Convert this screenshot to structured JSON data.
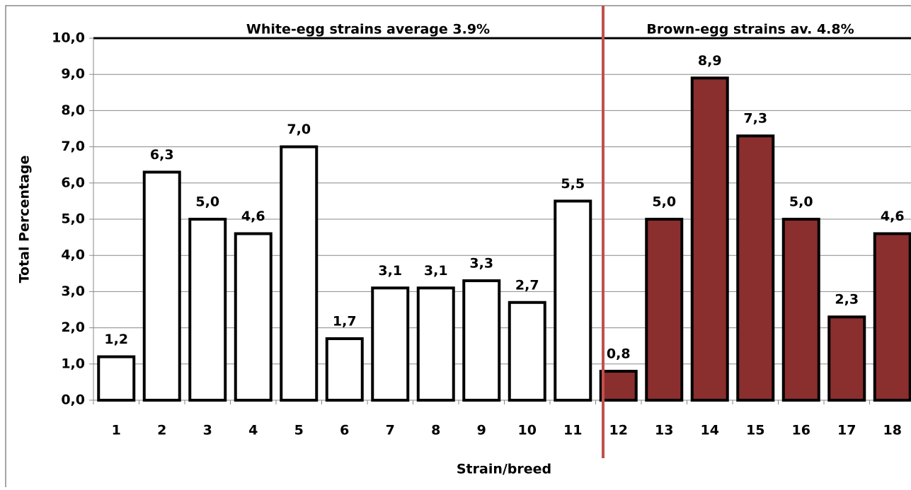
{
  "chart_data": {
    "type": "bar",
    "categories": [
      "1",
      "2",
      "3",
      "4",
      "5",
      "6",
      "7",
      "8",
      "9",
      "10",
      "11",
      "12",
      "13",
      "14",
      "15",
      "16",
      "17",
      "18"
    ],
    "values": [
      1.2,
      6.3,
      5.0,
      4.6,
      7.0,
      1.7,
      3.1,
      3.1,
      3.3,
      2.7,
      5.5,
      0.8,
      5.0,
      8.9,
      7.3,
      5.0,
      2.3,
      4.6
    ],
    "value_labels": [
      "1,2",
      "6,3",
      "5,0",
      "4,6",
      "7,0",
      "1,7",
      "3,1",
      "3,1",
      "3,3",
      "2,7",
      "5,5",
      "0,8",
      "5,0",
      "8,9",
      "7,3",
      "5,0",
      "2,3",
      "4,6"
    ],
    "colors": [
      "#ffffff",
      "#ffffff",
      "#ffffff",
      "#ffffff",
      "#ffffff",
      "#ffffff",
      "#ffffff",
      "#ffffff",
      "#ffffff",
      "#ffffff",
      "#ffffff",
      "#8b2e2e",
      "#8b2e2e",
      "#8b2e2e",
      "#8b2e2e",
      "#8b2e2e",
      "#8b2e2e",
      "#8b2e2e"
    ],
    "ylim": [
      0,
      10
    ],
    "yticks": [
      {
        "value": 0,
        "label": "0,0"
      },
      {
        "value": 1,
        "label": "1,0"
      },
      {
        "value": 2,
        "label": "2,0"
      },
      {
        "value": 3,
        "label": "3,0"
      },
      {
        "value": 4,
        "label": "4,0"
      },
      {
        "value": 5,
        "label": "5,0"
      },
      {
        "value": 6,
        "label": "6,0"
      },
      {
        "value": 7,
        "label": "7,0"
      },
      {
        "value": 8,
        "label": "8,0"
      },
      {
        "value": 9,
        "label": "9,0"
      },
      {
        "value": 10,
        "label": "10,0"
      }
    ],
    "grid": true,
    "x_label": "Strain/breed",
    "y_label": "Total Percentage",
    "annotations": [
      "White-egg strains average 3.9%",
      "Brown-egg strains av. 4.8%"
    ]
  }
}
